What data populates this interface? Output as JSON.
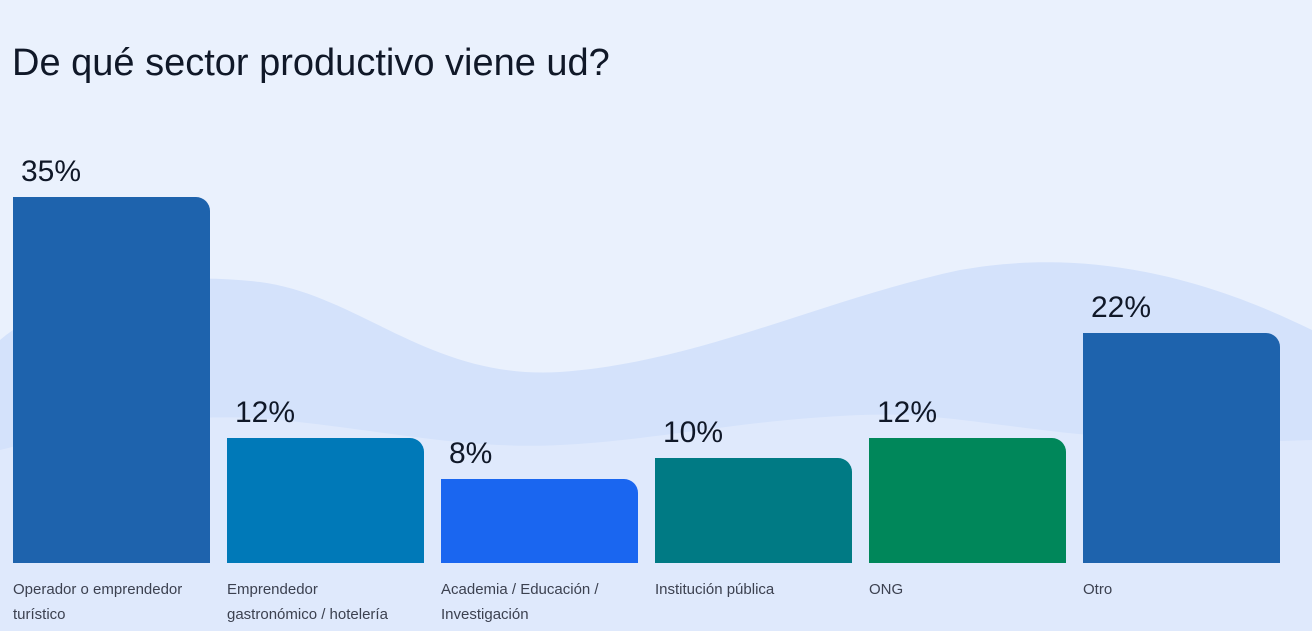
{
  "chart_data": {
    "type": "bar",
    "title": "De qué sector productivo viene ud?",
    "xlabel": "",
    "ylabel": "",
    "grid": false,
    "categories": [
      [
        "Operador o emprendedor",
        "turístico"
      ],
      [
        "Emprendedor",
        "gastronómico / hotelería"
      ],
      [
        "Academia / Educación /",
        "Investigación"
      ],
      [
        "Institución pública"
      ],
      [
        "ONG"
      ],
      [
        "Otro"
      ]
    ],
    "values": [
      35,
      12,
      8,
      10,
      12,
      22
    ],
    "value_labels": [
      "35%",
      "12%",
      "8%",
      "10%",
      "12%",
      "22%"
    ],
    "ylim": [
      0,
      35
    ],
    "colors": [
      "#1e63ad",
      "#0079b8",
      "#1a66f0",
      "#007a84",
      "#00875a",
      "#1e63ad"
    ]
  }
}
